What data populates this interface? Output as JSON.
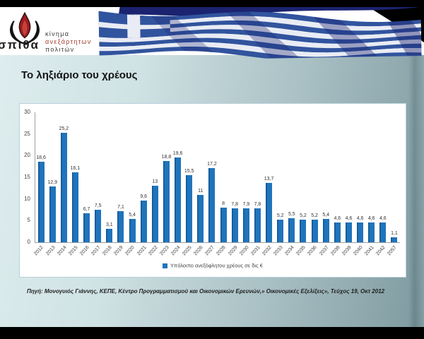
{
  "slide": {
    "title": "Το ληξιάριο του χρέους",
    "source": "Πηγή: Μονογυιός Γιάννης,  ΚΕΠΕ, Κέντρο Προγραμματισμού και Οικονομικών Ερευνών,» Οικονομικές Εξελίξεις», Τεύχος 19, Οκτ 2012"
  },
  "header": {
    "logo_text": "σπιθα",
    "org_line1": "κίνημα",
    "org_line2": "ανεξάρτητων",
    "org_line3": "πολιτών"
  },
  "chart_data": {
    "type": "bar",
    "title": "",
    "xlabel": "",
    "ylabel": "",
    "categories": [
      "2012",
      "2013",
      "2014",
      "2015",
      "2016",
      "2017",
      "2018",
      "2019",
      "2020",
      "2021",
      "2022",
      "2023",
      "2024",
      "2025",
      "2026",
      "2027",
      "2028",
      "2029",
      "2030",
      "2031",
      "2032",
      "2033",
      "2034",
      "2035",
      "2036",
      "2037",
      "2038",
      "2039",
      "2040",
      "2041",
      "2042",
      "2057"
    ],
    "values": [
      18.6,
      12.9,
      25.2,
      16.1,
      6.7,
      7.5,
      3.1,
      7.1,
      5.4,
      9.6,
      13,
      18.8,
      19.6,
      15.5,
      11,
      17.2,
      8,
      7.8,
      7.9,
      7.8,
      13.7,
      5.2,
      5.5,
      5.2,
      5.2,
      5.4,
      4.6,
      4.6,
      4.6,
      4.6,
      4.6,
      1.1
    ],
    "value_labels": [
      "18,6",
      "12,9",
      "25,2",
      "16,1",
      "6,7",
      "7,5",
      "3,1",
      "7,1",
      "5,4",
      "9,6",
      "13",
      "18,8",
      "19,6",
      "15,5",
      "11",
      "17,2",
      "8",
      "7,8",
      "7,9",
      "7,8",
      "13,7",
      "5,2",
      "5,5",
      "5,2",
      "5,2",
      "5,4",
      "4,6",
      "4,6",
      "4,6",
      "4,6",
      "4,6",
      "1,1"
    ],
    "legend": "Υπόλοιπο ανεξόφλητου χρέους σε δις €",
    "legend_position": "bottom",
    "ylim": [
      0,
      30
    ],
    "yticks": [
      0,
      5,
      10,
      15,
      20,
      25,
      30
    ],
    "grid": false,
    "bar_color": "#1F74BC"
  },
  "colors": {
    "bar_blue": "#1F74BC",
    "panel_border": "#B9D0DC",
    "flag_blue": "#31549E",
    "flag_navy": "#1B2370",
    "logo_red": "#9E1B20",
    "org_red": "#A33B2B"
  }
}
